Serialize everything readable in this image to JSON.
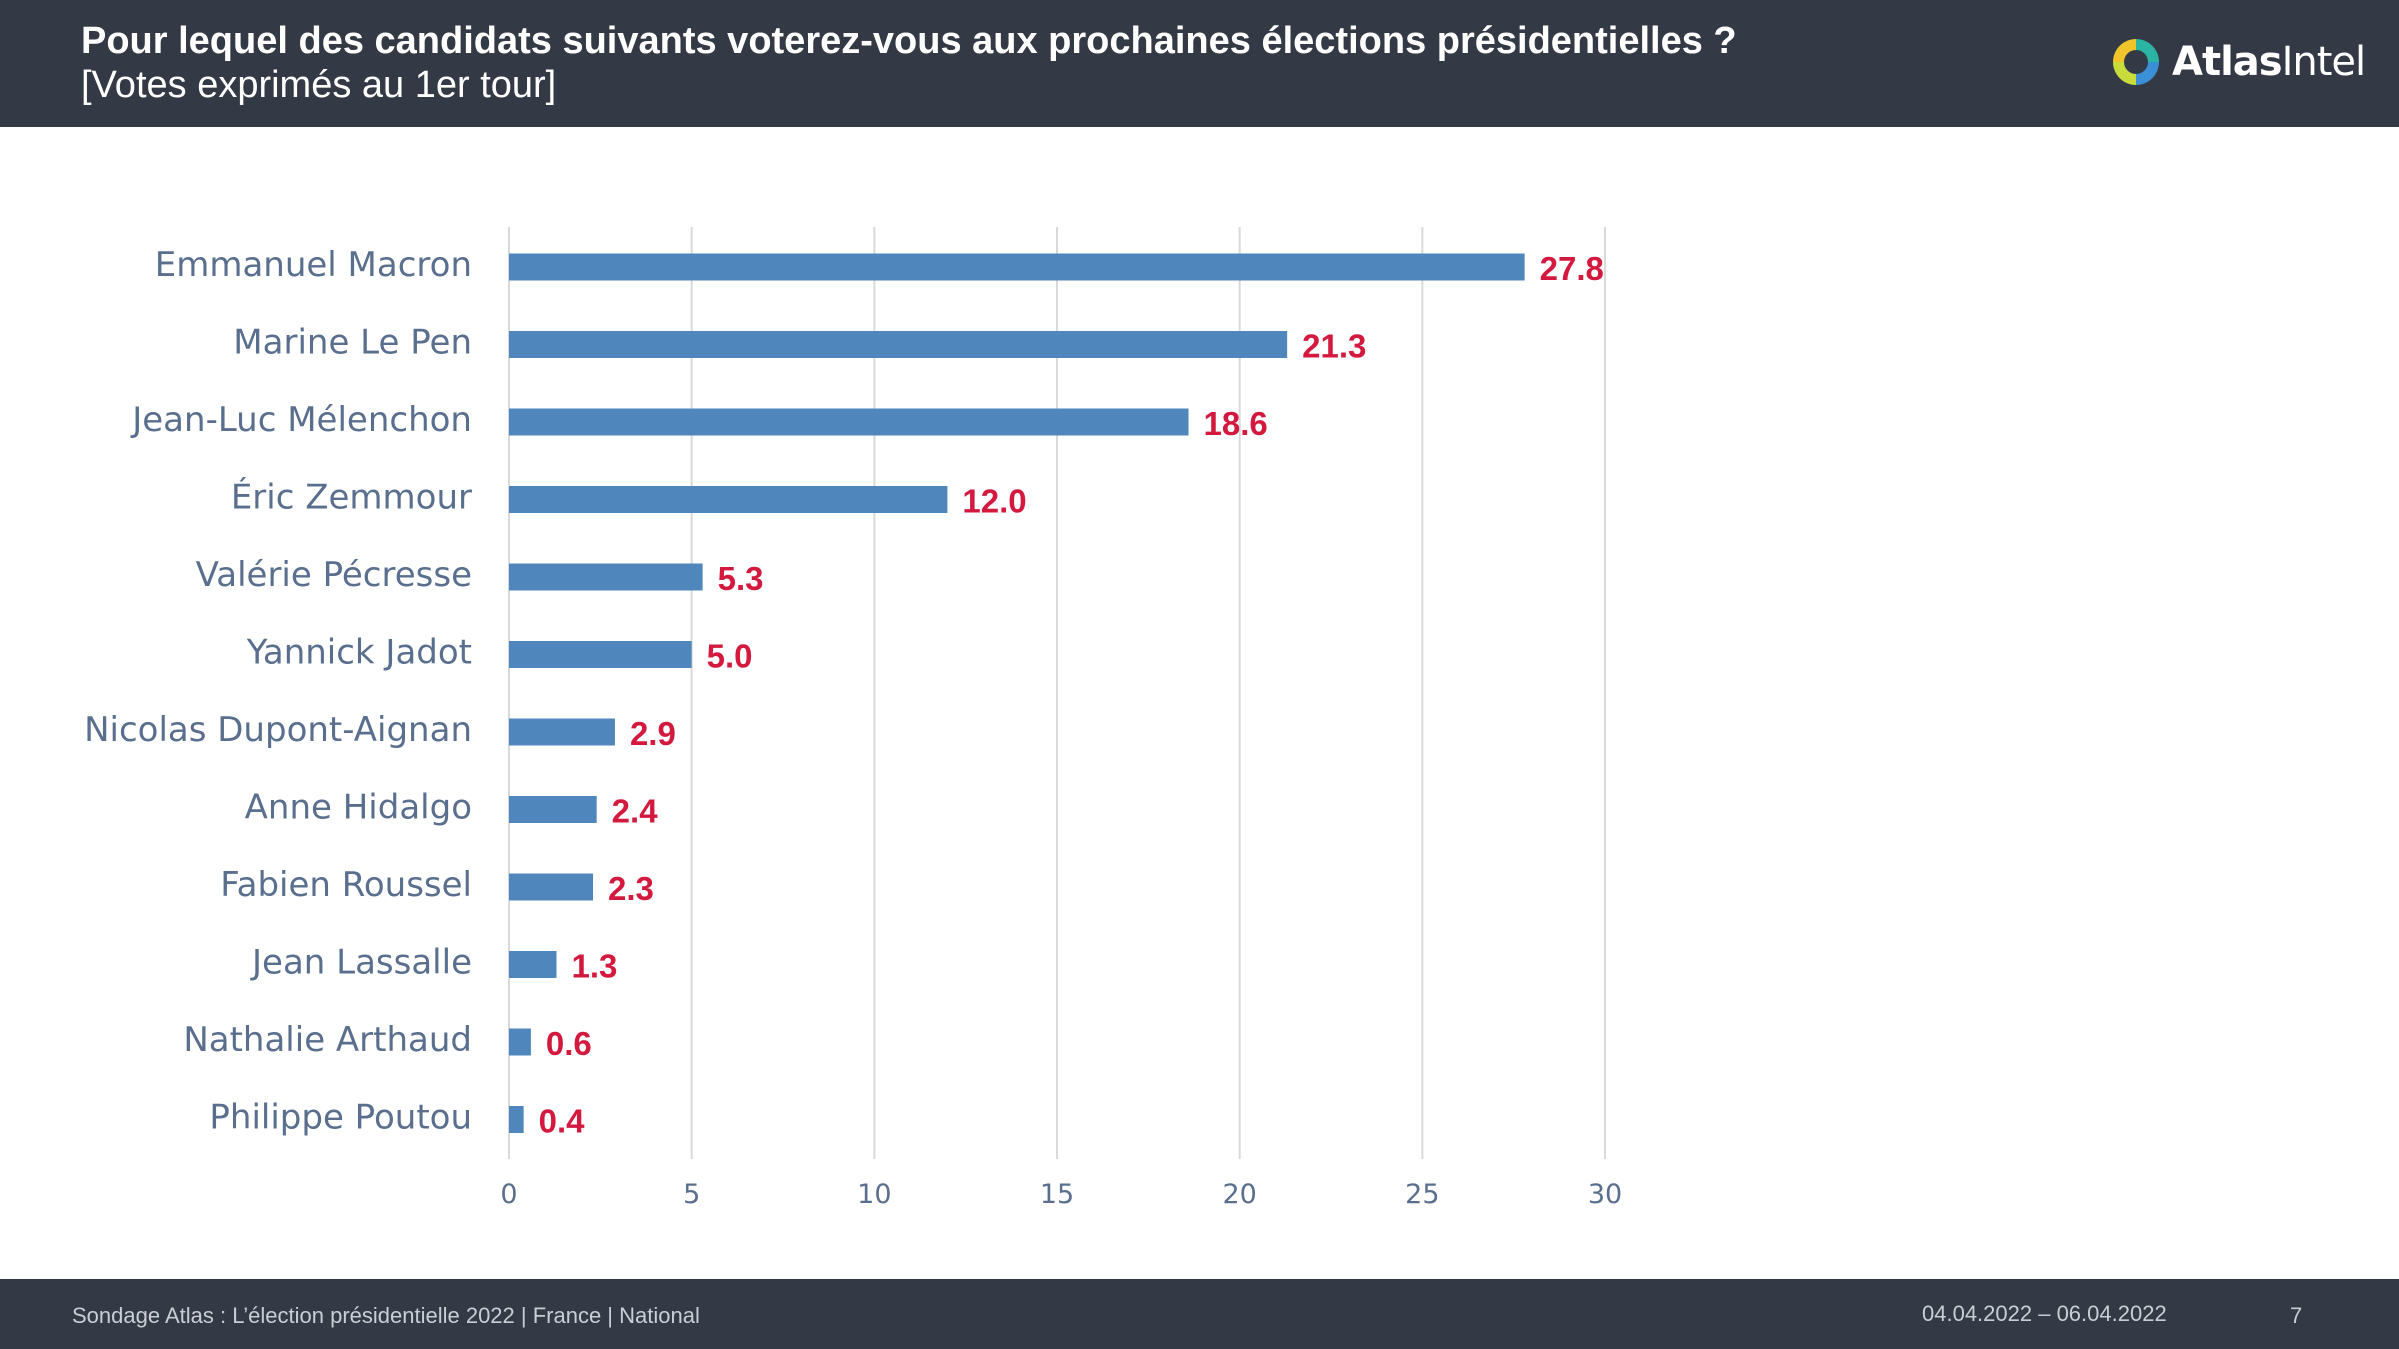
{
  "header": {
    "title": "Pour lequel des candidats suivants voterez-vous aux prochaines élections présidentielles ?",
    "subtitle": "[Votes exprimés au 1er tour]",
    "logo": {
      "bold": "Atlas",
      "regular": "Intel",
      "icon": "atlasintel-logo-icon"
    }
  },
  "footer": {
    "source": "Sondage Atlas : L’élection présidentielle 2022 | France | National",
    "dates": "04.04.2022 – 06.04.2022",
    "page": "7"
  },
  "colors": {
    "bar": "#4f87bc",
    "value_label": "#d4193f",
    "header_bg": "#343a45",
    "gridline": "#d9d9d9"
  },
  "chart_data": {
    "type": "bar",
    "orientation": "horizontal",
    "categories": [
      "Emmanuel Macron",
      "Marine Le Pen",
      "Jean-Luc Mélenchon",
      "Éric Zemmour",
      "Valérie Pécresse",
      "Yannick Jadot",
      "Nicolas Dupont-Aignan",
      "Anne Hidalgo",
      "Fabien Roussel",
      "Jean Lassalle",
      "Nathalie Arthaud",
      "Philippe Poutou"
    ],
    "values": [
      27.8,
      21.3,
      18.6,
      12.0,
      5.3,
      5.0,
      2.9,
      2.4,
      2.3,
      1.3,
      0.6,
      0.4
    ],
    "value_labels": [
      "27.8",
      "21.3",
      "18.6",
      "12.0",
      "5.3",
      "5.0",
      "2.9",
      "2.4",
      "2.3",
      "1.3",
      "0.6",
      "0.4"
    ],
    "xlim": [
      0,
      30
    ],
    "xticks": [
      0,
      5,
      10,
      15,
      20,
      25,
      30
    ],
    "grid": true,
    "legend": "none"
  }
}
